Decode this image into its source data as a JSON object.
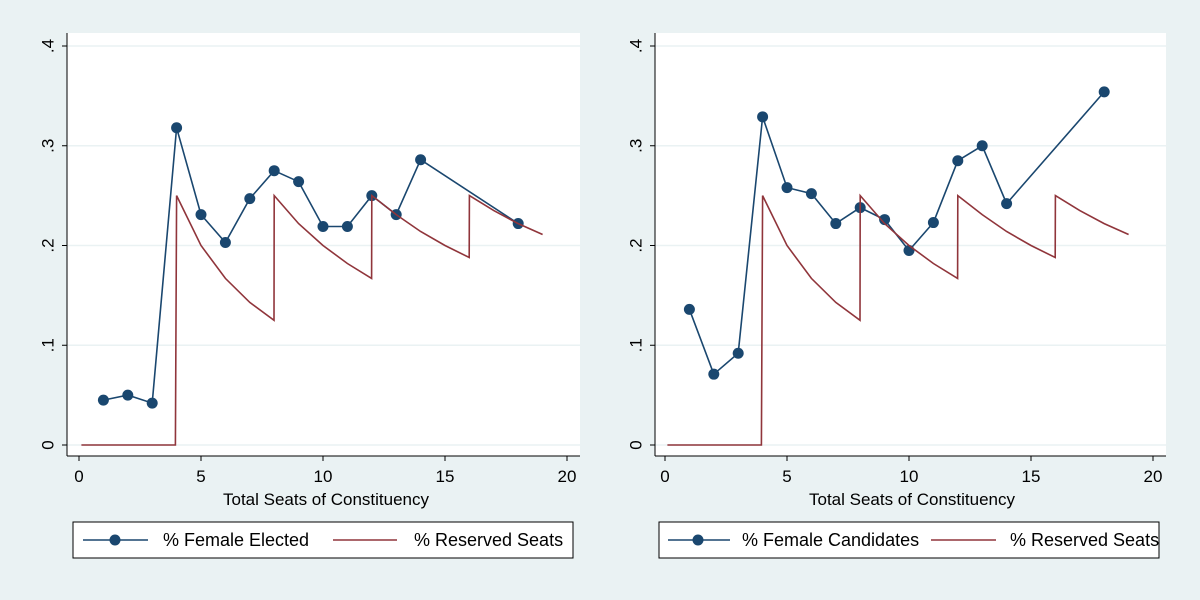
{
  "colors": {
    "background": "#eaf2f3",
    "plot_area": "#ffffff",
    "grid": "#eaf2f3",
    "series_markers": "#1a476f",
    "series_reserved": "#90353b"
  },
  "chart_data": [
    {
      "type": "line",
      "xlabel": "Total Seats of Constituency",
      "ylabel": "",
      "xlim": [
        0,
        20
      ],
      "ylim": [
        0,
        0.4
      ],
      "x_ticks": [
        0,
        5,
        10,
        15,
        20
      ],
      "x_tick_labels": [
        "0",
        "5",
        "10",
        "15",
        "20"
      ],
      "y_ticks": [
        0,
        0.1,
        0.2,
        0.3,
        0.4
      ],
      "y_tick_labels": [
        "0",
        ".1",
        ".2",
        ".3",
        ".4"
      ],
      "grid": true,
      "legend": "bottom",
      "series": [
        {
          "name": "% Female Elected",
          "style": "line-markers",
          "x": [
            1,
            2,
            3,
            4,
            5,
            6,
            7,
            8,
            9,
            10,
            11,
            12,
            13,
            14,
            18
          ],
          "y": [
            0.045,
            0.05,
            0.042,
            0.318,
            0.231,
            0.203,
            0.247,
            0.275,
            0.264,
            0.219,
            0.219,
            0.25,
            0.231,
            0.286,
            0.222
          ]
        },
        {
          "name": "% Reserved Seats",
          "style": "line",
          "x": [
            0.1,
            3.95,
            4,
            5,
            6,
            7,
            7.99,
            8,
            9,
            10,
            11,
            11.99,
            12,
            13,
            14,
            15,
            15.99,
            16,
            17,
            18,
            19
          ],
          "y": [
            0,
            0,
            0.25,
            0.2,
            0.167,
            0.143,
            0.125,
            0.25,
            0.222,
            0.2,
            0.182,
            0.167,
            0.25,
            0.231,
            0.214,
            0.2,
            0.188,
            0.25,
            0.235,
            0.222,
            0.211
          ]
        }
      ]
    },
    {
      "type": "line",
      "xlabel": "Total Seats of Constituency",
      "ylabel": "",
      "xlim": [
        0,
        20
      ],
      "ylim": [
        0,
        0.4
      ],
      "x_ticks": [
        0,
        5,
        10,
        15,
        20
      ],
      "x_tick_labels": [
        "0",
        "5",
        "10",
        "15",
        "20"
      ],
      "y_ticks": [
        0,
        0.1,
        0.2,
        0.3,
        0.4
      ],
      "y_tick_labels": [
        "0",
        ".1",
        ".2",
        ".3",
        ".4"
      ],
      "grid": true,
      "legend": "bottom",
      "series": [
        {
          "name": "% Female Candidates",
          "style": "line-markers",
          "x": [
            1,
            2,
            3,
            4,
            5,
            6,
            7,
            8,
            9,
            10,
            11,
            12,
            13,
            14,
            18
          ],
          "y": [
            0.136,
            0.071,
            0.092,
            0.329,
            0.258,
            0.252,
            0.222,
            0.238,
            0.226,
            0.195,
            0.223,
            0.285,
            0.3,
            0.242,
            0.354
          ]
        },
        {
          "name": "% Reserved Seats",
          "style": "line",
          "x": [
            0.1,
            3.95,
            4,
            5,
            6,
            7,
            7.99,
            8,
            9,
            10,
            11,
            11.99,
            12,
            13,
            14,
            15,
            15.99,
            16,
            17,
            18,
            19
          ],
          "y": [
            0,
            0,
            0.25,
            0.2,
            0.167,
            0.143,
            0.125,
            0.25,
            0.222,
            0.2,
            0.182,
            0.167,
            0.25,
            0.231,
            0.214,
            0.2,
            0.188,
            0.25,
            0.235,
            0.222,
            0.211
          ]
        }
      ]
    }
  ]
}
